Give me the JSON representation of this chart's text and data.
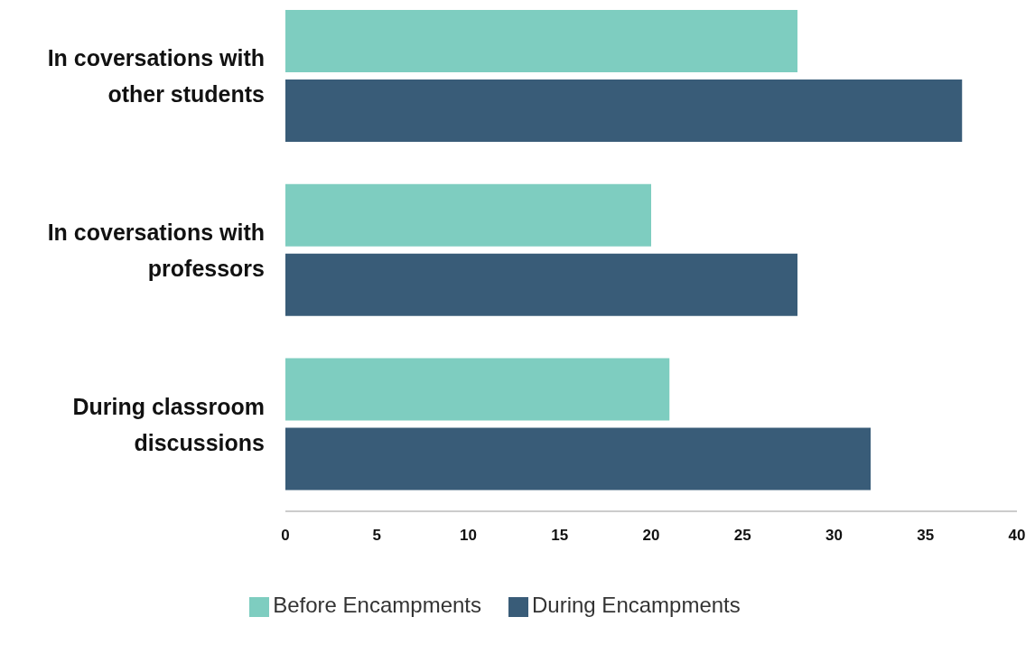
{
  "chart_data": {
    "type": "bar",
    "orientation": "horizontal",
    "categories": [
      "In coversations with other students",
      "In coversations with professors",
      "During classroom discussions"
    ],
    "series": [
      {
        "name": "Before Encampments",
        "color": "#7ecdc0",
        "values": [
          28,
          20,
          21
        ]
      },
      {
        "name": "During Encampments",
        "color": "#395c78",
        "values": [
          37,
          28,
          32
        ]
      }
    ],
    "xlim": [
      0,
      40
    ],
    "xticks": [
      0,
      5,
      10,
      15,
      20,
      25,
      30,
      35,
      40
    ],
    "grid": false,
    "legend": "bottom"
  }
}
